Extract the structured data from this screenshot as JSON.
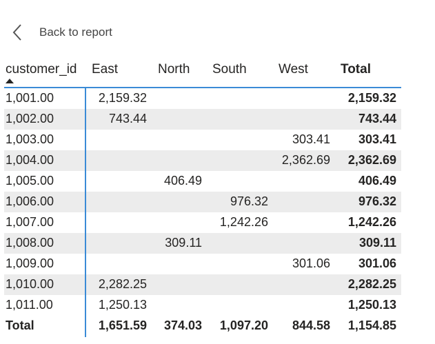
{
  "nav": {
    "back_label": "Back to report"
  },
  "matrix": {
    "headers": {
      "row_field": "customer_id",
      "columns": [
        "East",
        "North",
        "South",
        "West"
      ],
      "total": "Total"
    },
    "rows": [
      {
        "id": "1,001.00",
        "east": "2,159.32",
        "north": "",
        "south": "",
        "west": "",
        "total": "2,159.32"
      },
      {
        "id": "1,002.00",
        "east": "743.44",
        "north": "",
        "south": "",
        "west": "",
        "total": "743.44"
      },
      {
        "id": "1,003.00",
        "east": "",
        "north": "",
        "south": "",
        "west": "303.41",
        "total": "303.41"
      },
      {
        "id": "1,004.00",
        "east": "",
        "north": "",
        "south": "",
        "west": "2,362.69",
        "total": "2,362.69"
      },
      {
        "id": "1,005.00",
        "east": "",
        "north": "406.49",
        "south": "",
        "west": "",
        "total": "406.49"
      },
      {
        "id": "1,006.00",
        "east": "",
        "north": "",
        "south": "976.32",
        "west": "",
        "total": "976.32"
      },
      {
        "id": "1,007.00",
        "east": "",
        "north": "",
        "south": "1,242.26",
        "west": "",
        "total": "1,242.26"
      },
      {
        "id": "1,008.00",
        "east": "",
        "north": "309.11",
        "south": "",
        "west": "",
        "total": "309.11"
      },
      {
        "id": "1,009.00",
        "east": "",
        "north": "",
        "south": "",
        "west": "301.06",
        "total": "301.06"
      },
      {
        "id": "1,010.00",
        "east": "2,282.25",
        "north": "",
        "south": "",
        "west": "",
        "total": "2,282.25"
      },
      {
        "id": "1,011.00",
        "east": "1,250.13",
        "north": "",
        "south": "",
        "west": "",
        "total": "1,250.13"
      }
    ],
    "totals": {
      "label": "Total",
      "east": "1,651.59",
      "north": "374.03",
      "south": "1,097.20",
      "west": "844.58",
      "total": "1,154.85"
    }
  },
  "colors": {
    "accent": "#3a8bd6",
    "band": "#ececec",
    "text": "#252423"
  },
  "icons": {
    "back": "chevron-left-icon",
    "sort": "sort-ascending-icon"
  }
}
